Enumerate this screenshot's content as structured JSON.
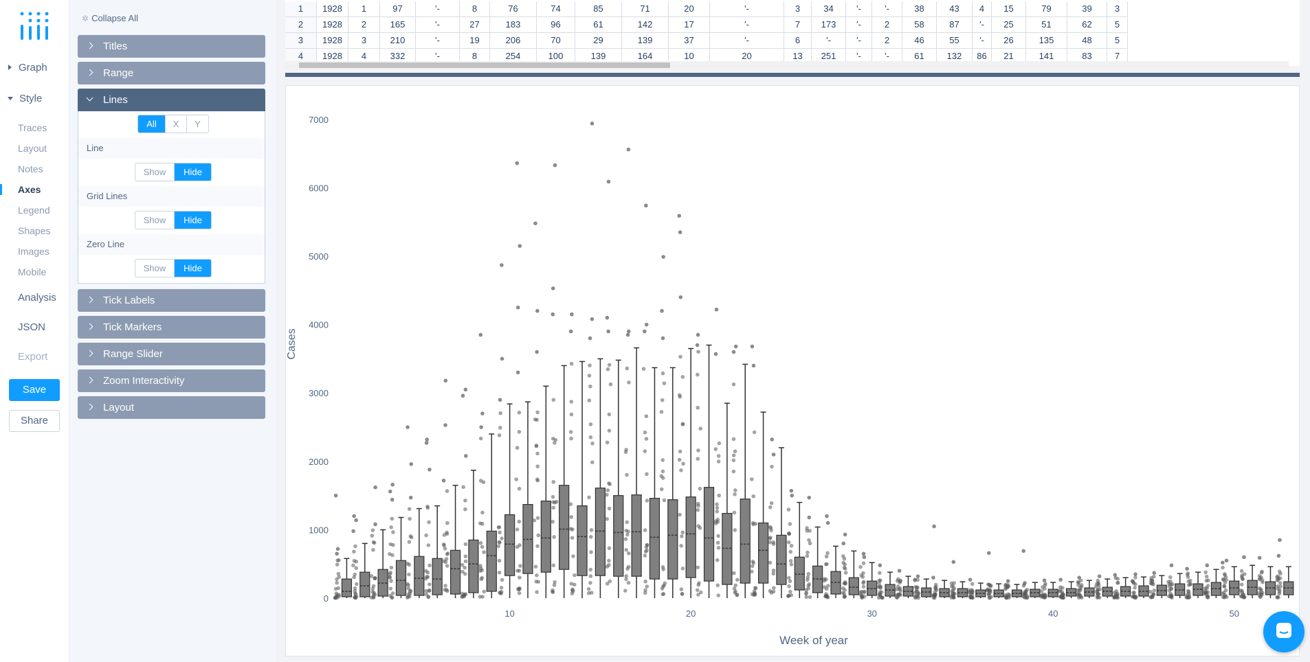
{
  "nav": {
    "items": [
      {
        "label": "Graph",
        "expanded": false
      },
      {
        "label": "Style",
        "expanded": true
      }
    ],
    "style_subitems": [
      "Traces",
      "Layout",
      "Notes",
      "Axes",
      "Legend",
      "Shapes",
      "Images",
      "Mobile"
    ],
    "active_subitem": "Axes",
    "analysis": "Analysis",
    "json": "JSON",
    "export": "Export",
    "save": "Save",
    "share": "Share"
  },
  "panel": {
    "collapse_all": "Collapse All",
    "sections_top": [
      "Titles",
      "Range",
      "Lines"
    ],
    "lines": {
      "axis_toggle": [
        "All",
        "X",
        "Y"
      ],
      "axis_selected": "All",
      "rows": [
        {
          "label": "Line",
          "options": [
            "Show",
            "Hide"
          ],
          "selected": "Hide"
        },
        {
          "label": "Grid Lines",
          "options": [
            "Show",
            "Hide"
          ],
          "selected": "Hide"
        },
        {
          "label": "Zero Line",
          "options": [
            "Show",
            "Hide"
          ],
          "selected": "Hide"
        }
      ]
    },
    "sections_bottom": [
      "Tick Labels",
      "Tick Markers",
      "Range Slider",
      "Zoom Interactivity",
      "Layout"
    ]
  },
  "grid": {
    "rows": [
      [
        "1",
        "1928",
        "1",
        "97",
        "'-",
        "8",
        "76",
        "74",
        "85",
        "71",
        "20",
        "'-",
        "3",
        "34",
        "'-",
        "'-",
        "38",
        "43",
        "4",
        "15",
        "79",
        "39",
        "3"
      ],
      [
        "2",
        "1928",
        "2",
        "165",
        "'-",
        "27",
        "183",
        "96",
        "61",
        "142",
        "17",
        "'-",
        "7",
        "173",
        "'-",
        "2",
        "58",
        "87",
        "'-",
        "25",
        "51",
        "62",
        "5"
      ],
      [
        "3",
        "1928",
        "3",
        "210",
        "'-",
        "19",
        "206",
        "70",
        "29",
        "139",
        "37",
        "'-",
        "6",
        "'-",
        "'-",
        "2",
        "46",
        "55",
        "'-",
        "26",
        "135",
        "48",
        "5"
      ],
      [
        "4",
        "1928",
        "4",
        "332",
        "'-",
        "8",
        "254",
        "100",
        "139",
        "164",
        "10",
        "20",
        "13",
        "251",
        "'-",
        "'-",
        "61",
        "132",
        "86",
        "21",
        "141",
        "83",
        "7"
      ]
    ]
  },
  "chart_data": {
    "type": "box",
    "xlabel": "Week of year",
    "ylabel": "Cases",
    "x_ticks": [
      10,
      20,
      30,
      40,
      50
    ],
    "y_ticks": [
      0,
      1000,
      2000,
      3000,
      4000,
      5000,
      6000,
      7000
    ],
    "xlim": [
      0.3,
      53.5
    ],
    "ylim": [
      -100,
      7350
    ],
    "box_color": "#808080",
    "boxes": [
      {
        "week": 1,
        "q1": 20,
        "median": 100,
        "q3": 280,
        "upper": 580,
        "outliers": [
          1500,
          720,
          650
        ]
      },
      {
        "week": 2,
        "q1": 20,
        "median": 180,
        "q3": 380,
        "upper": 800,
        "outliers": [
          1200,
          1140,
          980
        ]
      },
      {
        "week": 3,
        "q1": 30,
        "median": 220,
        "q3": 420,
        "upper": 1000,
        "outliers": [
          1620,
          1080
        ]
      },
      {
        "week": 4,
        "q1": 40,
        "median": 260,
        "q3": 550,
        "upper": 1180,
        "outliers": [
          1660,
          1560,
          1440
        ]
      },
      {
        "week": 5,
        "q1": 40,
        "median": 290,
        "q3": 610,
        "upper": 1310,
        "outliers": [
          2500,
          1960,
          1470
        ]
      },
      {
        "week": 6,
        "q1": 50,
        "median": 280,
        "q3": 580,
        "upper": 1350,
        "outliers": [
          2320,
          2270,
          1880
        ]
      },
      {
        "week": 7,
        "q1": 60,
        "median": 430,
        "q3": 700,
        "upper": 1650,
        "outliers": [
          3180,
          2530,
          1720
        ]
      },
      {
        "week": 8,
        "q1": 80,
        "median": 500,
        "q3": 850,
        "upper": 1870,
        "outliers": [
          3050,
          2960,
          2080
        ]
      },
      {
        "week": 9,
        "q1": 100,
        "median": 620,
        "q3": 980,
        "upper": 2400,
        "outliers": [
          3850,
          2700,
          2500
        ]
      },
      {
        "week": 10,
        "q1": 330,
        "median": 790,
        "q3": 1220,
        "upper": 2840,
        "outliers": [
          4870,
          3500,
          2900
        ]
      },
      {
        "week": 11,
        "q1": 360,
        "median": 860,
        "q3": 1370,
        "upper": 2870,
        "outliers": [
          6360,
          5150,
          4250,
          3300
        ]
      },
      {
        "week": 12,
        "q1": 380,
        "median": 880,
        "q3": 1420,
        "upper": 3100,
        "outliers": [
          5480,
          4200,
          3600
        ]
      },
      {
        "week": 13,
        "q1": 420,
        "median": 1010,
        "q3": 1650,
        "upper": 3400,
        "outliers": [
          6330,
          4530,
          4150
        ]
      },
      {
        "week": 14,
        "q1": 330,
        "median": 900,
        "q3": 1350,
        "upper": 3460,
        "outliers": [
          4150,
          3900
        ]
      },
      {
        "week": 15,
        "q1": 330,
        "median": 980,
        "q3": 1610,
        "upper": 3500,
        "outliers": [
          6940,
          4080,
          3800
        ]
      },
      {
        "week": 16,
        "q1": 320,
        "median": 960,
        "q3": 1500,
        "upper": 3480,
        "outliers": [
          6090,
          4100,
          3900
        ]
      },
      {
        "week": 17,
        "q1": 320,
        "median": 970,
        "q3": 1510,
        "upper": 3660,
        "outliers": [
          6560,
          3900,
          3850
        ]
      },
      {
        "week": 18,
        "q1": 280,
        "median": 890,
        "q3": 1460,
        "upper": 3370,
        "outliers": [
          5740,
          4000,
          3900
        ]
      },
      {
        "week": 19,
        "q1": 280,
        "median": 920,
        "q3": 1440,
        "upper": 3370,
        "outliers": [
          4990,
          4200,
          3800
        ]
      },
      {
        "week": 20,
        "q1": 300,
        "median": 940,
        "q3": 1480,
        "upper": 3650,
        "outliers": [
          5590,
          5350,
          4400
        ]
      },
      {
        "week": 21,
        "q1": 250,
        "median": 880,
        "q3": 1620,
        "upper": 3700,
        "outliers": [
          3850,
          3700
        ]
      },
      {
        "week": 22,
        "q1": 200,
        "median": 730,
        "q3": 1240,
        "upper": 2850,
        "outliers": [
          4220,
          3570
        ]
      },
      {
        "week": 23,
        "q1": 220,
        "median": 790,
        "q3": 1450,
        "upper": 3420,
        "outliers": [
          3680,
          3600
        ]
      },
      {
        "week": 24,
        "q1": 220,
        "median": 700,
        "q3": 1100,
        "upper": 2720,
        "outliers": [
          3680,
          3400
        ]
      },
      {
        "week": 25,
        "q1": 200,
        "median": 500,
        "q3": 920,
        "upper": 2200,
        "outliers": [
          2320,
          2100
        ]
      },
      {
        "week": 26,
        "q1": 120,
        "median": 350,
        "q3": 600,
        "upper": 1400,
        "outliers": [
          1570,
          1500
        ]
      },
      {
        "week": 27,
        "q1": 80,
        "median": 280,
        "q3": 470,
        "upper": 1040,
        "outliers": [
          1470,
          1180
        ]
      },
      {
        "week": 28,
        "q1": 60,
        "median": 230,
        "q3": 390,
        "upper": 760,
        "outliers": [
          1200,
          1100
        ]
      },
      {
        "week": 29,
        "q1": 50,
        "median": 160,
        "q3": 300,
        "upper": 690,
        "outliers": [
          930,
          800
        ]
      },
      {
        "week": 30,
        "q1": 40,
        "median": 140,
        "q3": 250,
        "upper": 520,
        "outliers": [
          650,
          600
        ]
      },
      {
        "week": 31,
        "q1": 30,
        "median": 120,
        "q3": 200,
        "upper": 380,
        "outliers": [
          480
        ]
      },
      {
        "week": 32,
        "q1": 30,
        "median": 100,
        "q3": 170,
        "upper": 320,
        "outliers": [
          400
        ]
      },
      {
        "week": 33,
        "q1": 20,
        "median": 90,
        "q3": 150,
        "upper": 280,
        "outliers": [
          320
        ]
      },
      {
        "week": 34,
        "q1": 20,
        "median": 80,
        "q3": 140,
        "upper": 260,
        "outliers": [
          1050,
          300
        ]
      },
      {
        "week": 35,
        "q1": 20,
        "median": 80,
        "q3": 140,
        "upper": 240,
        "outliers": [
          530
        ]
      },
      {
        "week": 36,
        "q1": 20,
        "median": 70,
        "q3": 120,
        "upper": 220,
        "outliers": [
          270
        ]
      },
      {
        "week": 37,
        "q1": 20,
        "median": 70,
        "q3": 120,
        "upper": 210,
        "outliers": [
          660
        ]
      },
      {
        "week": 38,
        "q1": 20,
        "median": 70,
        "q3": 120,
        "upper": 200,
        "outliers": [
          250
        ]
      },
      {
        "week": 39,
        "q1": 20,
        "median": 80,
        "q3": 130,
        "upper": 230,
        "outliers": [
          690
        ]
      },
      {
        "week": 40,
        "q1": 20,
        "median": 80,
        "q3": 130,
        "upper": 230,
        "outliers": [
          260
        ]
      },
      {
        "week": 41,
        "q1": 30,
        "median": 80,
        "q3": 140,
        "upper": 240,
        "outliers": [
          270
        ]
      },
      {
        "week": 42,
        "q1": 30,
        "median": 90,
        "q3": 150,
        "upper": 260,
        "outliers": [
          300
        ]
      },
      {
        "week": 43,
        "q1": 30,
        "median": 100,
        "q3": 160,
        "upper": 280,
        "outliers": [
          320
        ]
      },
      {
        "week": 44,
        "q1": 30,
        "median": 100,
        "q3": 170,
        "upper": 300,
        "outliers": [
          340
        ]
      },
      {
        "week": 45,
        "q1": 30,
        "median": 100,
        "q3": 180,
        "upper": 310,
        "outliers": [
          350
        ]
      },
      {
        "week": 46,
        "q1": 40,
        "median": 110,
        "q3": 190,
        "upper": 330,
        "outliers": [
          370
        ]
      },
      {
        "week": 47,
        "q1": 40,
        "median": 120,
        "q3": 210,
        "upper": 360,
        "outliers": [
          480
        ]
      },
      {
        "week": 48,
        "q1": 40,
        "median": 130,
        "q3": 210,
        "upper": 380,
        "outliers": [
          430
        ]
      },
      {
        "week": 49,
        "q1": 40,
        "median": 140,
        "q3": 230,
        "upper": 420,
        "outliers": [
          480
        ]
      },
      {
        "week": 50,
        "q1": 50,
        "median": 150,
        "q3": 250,
        "upper": 460,
        "outliers": [
          550,
          520
        ]
      },
      {
        "week": 51,
        "q1": 50,
        "median": 160,
        "q3": 260,
        "upper": 480,
        "outliers": [
          600
        ]
      },
      {
        "week": 52,
        "q1": 50,
        "median": 150,
        "q3": 240,
        "upper": 460,
        "outliers": [
          590
        ]
      },
      {
        "week": 53,
        "q1": 50,
        "median": 150,
        "q3": 240,
        "upper": 460,
        "outliers": [
          850,
          620
        ]
      }
    ]
  }
}
